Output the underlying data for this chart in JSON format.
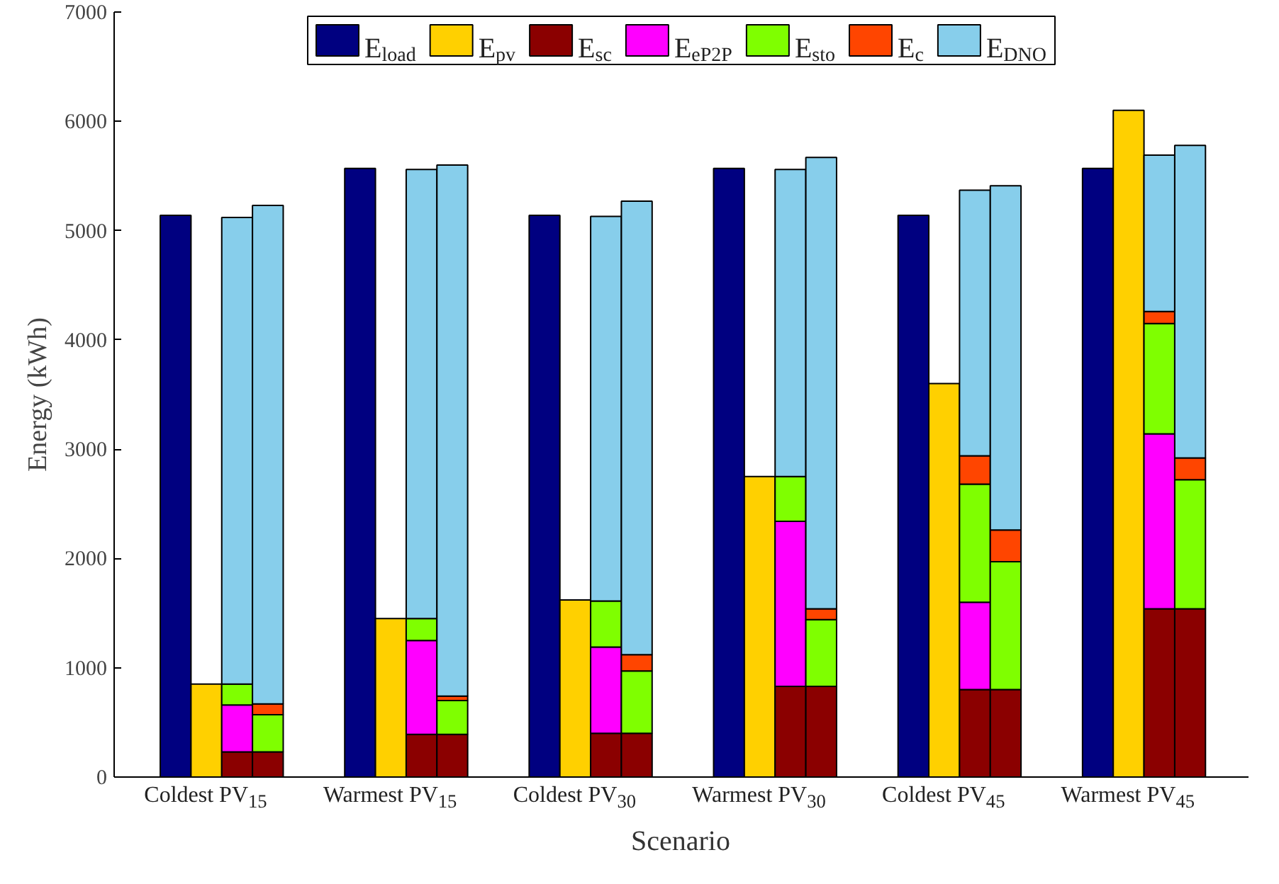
{
  "chart_data": {
    "type": "bar",
    "stacked": true,
    "xlabel": "Scenario",
    "ylabel": "Energy (kWh)",
    "categories": [
      null,
      "Coldest PV$_{15}$",
      null,
      null,
      null,
      null,
      null,
      "Warmest PV$_{15}$",
      null,
      null,
      null,
      null,
      null,
      "Coldest PV$_{30}$",
      null,
      null,
      null,
      null,
      null,
      "Warmest PV$_{30}$",
      null,
      null,
      null,
      null,
      null,
      "Coldest PV$_{45}$",
      null,
      null,
      null,
      null,
      null,
      "Warmest PV$_{45}$",
      null,
      null,
      null,
      null
    ],
    "ylim": [
      0,
      7000
    ],
    "yticks": [
      0,
      1000,
      2000,
      3000,
      4000,
      5000,
      6000,
      7000
    ],
    "legend": "top",
    "grid": false,
    "series": [
      {
        "name": "E$_{load}$",
        "color": "#000080",
        "values": [
          5140,
          null,
          null,
          null,
          null,
          null,
          5570,
          null,
          null,
          null,
          null,
          null,
          5140,
          null,
          null,
          null,
          null,
          null,
          5570,
          null,
          null,
          null,
          null,
          null,
          5140,
          null,
          null,
          null,
          null,
          null,
          5570,
          null,
          null,
          null,
          null,
          null
        ]
      },
      {
        "name": "E$_{pv}$",
        "color": "#ffd000",
        "values": [
          null,
          850,
          null,
          null,
          null,
          null,
          null,
          1450,
          null,
          null,
          null,
          null,
          null,
          1620,
          null,
          null,
          null,
          null,
          null,
          2750,
          null,
          null,
          null,
          null,
          null,
          3600,
          null,
          null,
          null,
          null,
          null,
          6100,
          null,
          null,
          null,
          null
        ]
      },
      {
        "name": "E$_{sc}$",
        "color": "#8b0000",
        "values": [
          null,
          null,
          230,
          230,
          null,
          null,
          null,
          null,
          390,
          390,
          null,
          null,
          null,
          null,
          400,
          400,
          null,
          null,
          null,
          null,
          830,
          830,
          null,
          null,
          null,
          null,
          800,
          800,
          null,
          null,
          null,
          null,
          1540,
          1540,
          null,
          null
        ]
      },
      {
        "name": "E$_{eP2P}$",
        "color": "#ff00ff",
        "values": [
          null,
          null,
          430,
          null,
          null,
          null,
          null,
          null,
          860,
          null,
          null,
          null,
          null,
          null,
          790,
          null,
          null,
          null,
          null,
          null,
          1510,
          null,
          null,
          null,
          null,
          null,
          800,
          null,
          null,
          null,
          null,
          null,
          1600,
          null,
          null,
          null
        ]
      },
      {
        "name": "E$_{sto}$",
        "color": "#7fff00",
        "values": [
          null,
          null,
          190,
          340,
          null,
          null,
          null,
          null,
          200,
          310,
          null,
          null,
          null,
          null,
          420,
          570,
          null,
          null,
          null,
          null,
          410,
          610,
          null,
          null,
          null,
          null,
          1080,
          1170,
          null,
          null,
          null,
          null,
          1010,
          1180,
          null,
          null
        ]
      },
      {
        "name": "E$_{c}$",
        "color": "#ff4500",
        "values": [
          null,
          null,
          null,
          100,
          null,
          null,
          null,
          null,
          null,
          40,
          null,
          null,
          null,
          null,
          null,
          150,
          null,
          null,
          null,
          null,
          null,
          100,
          null,
          null,
          null,
          null,
          260,
          290,
          null,
          null,
          null,
          null,
          110,
          200,
          null,
          null
        ]
      },
      {
        "name": "E$_{DNO}$",
        "color": "#87ceeb",
        "values": [
          null,
          null,
          4270,
          4560,
          null,
          null,
          null,
          null,
          4110,
          4860,
          null,
          null,
          null,
          null,
          3520,
          4150,
          null,
          null,
          null,
          null,
          2810,
          4130,
          null,
          null,
          null,
          null,
          2430,
          3150,
          null,
          null,
          null,
          null,
          1430,
          2860,
          null,
          null
        ]
      }
    ]
  }
}
